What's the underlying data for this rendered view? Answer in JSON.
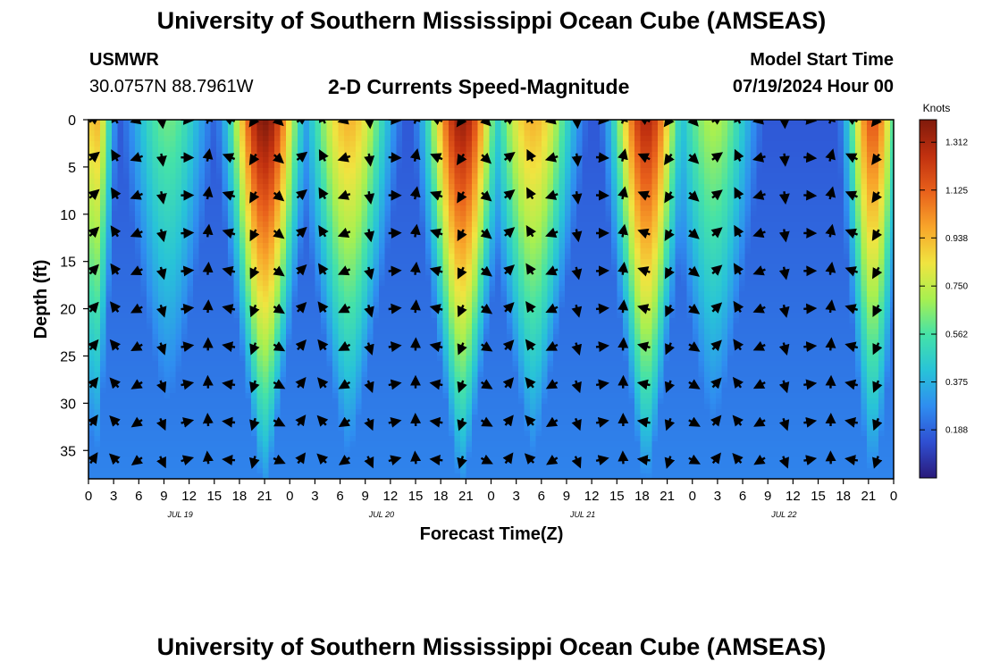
{
  "header": {
    "title": "University of Southern Mississippi Ocean Cube (AMSEAS)",
    "station": "USMWR",
    "coords": "30.0757N  88.7961W",
    "subtitle": "2-D Currents Speed-Magnitude",
    "model_start_label": "Model Start Time",
    "model_start_value": "07/19/2024 Hour 00",
    "footer_title": "University of Southern Mississippi Ocean Cube (AMSEAS)"
  },
  "colors": {
    "scale": [
      "#2a1a7a",
      "#2f4fd2",
      "#2f8df0",
      "#28c3d8",
      "#45e2a8",
      "#a8f050",
      "#f0e440",
      "#f8a52a",
      "#e8601b",
      "#c0300f",
      "#801a0c"
    ]
  },
  "chart_data": {
    "type": "heatmap",
    "title": "2-D Currents Speed-Magnitude",
    "xlabel": "Forecast Time(Z)",
    "ylabel": "Depth (ft)",
    "x_tick_labels": [
      "0",
      "3",
      "6",
      "9",
      "12",
      "15",
      "18",
      "21",
      "0",
      "3",
      "6",
      "9",
      "12",
      "15",
      "18",
      "21",
      "0",
      "3",
      "6",
      "9",
      "12",
      "15",
      "18",
      "21",
      "0",
      "3",
      "6",
      "9",
      "12",
      "15",
      "18",
      "21",
      "0"
    ],
    "x_day_labels": [
      "JUL 19",
      "JUL 20",
      "JUL 21",
      "JUL 22"
    ],
    "xlim_hours": [
      0,
      96
    ],
    "ylim": [
      0,
      38
    ],
    "y_ticks": [
      0,
      5,
      10,
      15,
      20,
      25,
      30,
      35
    ],
    "colorbar_unit": "Knots",
    "colorbar_labels": [
      "1.312",
      "1.125",
      "0.938",
      "0.750",
      "0.562",
      "0.375",
      "0.188"
    ],
    "colorbar_range": [
      0,
      1.4
    ],
    "speed_peaks": [
      {
        "hour": 0.8,
        "speed": 0.95,
        "width": 1.6,
        "taper": 0.75
      },
      {
        "hour": 9.5,
        "speed": 0.62,
        "width": 4.5,
        "taper": 0.8
      },
      {
        "hour": 21.0,
        "speed": 1.4,
        "width": 3.6,
        "taper": 0.8
      },
      {
        "hour": 31.0,
        "speed": 0.95,
        "width": 4.5,
        "taper": 0.85
      },
      {
        "hour": 44.5,
        "speed": 1.35,
        "width": 3.6,
        "taper": 0.8
      },
      {
        "hour": 53.0,
        "speed": 0.95,
        "width": 4.5,
        "taper": 0.9
      },
      {
        "hour": 66.5,
        "speed": 1.3,
        "width": 3.4,
        "taper": 0.8
      },
      {
        "hour": 74.5,
        "speed": 0.72,
        "width": 4.5,
        "taper": 0.8
      },
      {
        "hour": 93.5,
        "speed": 1.15,
        "width": 2.5,
        "taper": 0.6
      }
    ],
    "arrow_rows_ft": [
      0,
      4,
      8,
      12,
      16,
      20,
      24,
      28,
      32,
      36
    ],
    "arrow_step_hours": 2.75
  }
}
